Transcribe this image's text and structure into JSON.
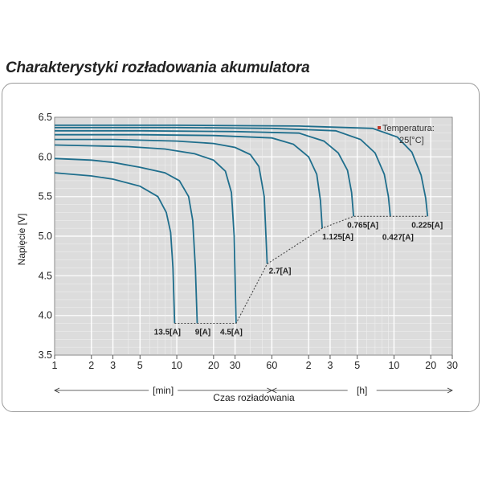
{
  "chart_data": {
    "type": "line",
    "title": "Charakterystyki rozładowania akumulatora",
    "ylabel": "Napięcie [V]",
    "xlabel": "Czas rozładowania",
    "x_scale": "log",
    "xlim_minutes": [
      1,
      1800
    ],
    "ylim": [
      3.5,
      6.5
    ],
    "y_ticks": [
      "3.5",
      "4.0",
      "4.5",
      "5.0",
      "5.5",
      "6.0",
      "6.5"
    ],
    "x_ticks": [
      {
        "label": "1",
        "minutes": 1
      },
      {
        "label": "2",
        "minutes": 2
      },
      {
        "label": "3",
        "minutes": 3
      },
      {
        "label": "5",
        "minutes": 5
      },
      {
        "label": "10",
        "minutes": 10
      },
      {
        "label": "20",
        "minutes": 20
      },
      {
        "label": "30",
        "minutes": 30
      },
      {
        "label": "60",
        "minutes": 60
      },
      {
        "label": "2",
        "minutes": 120
      },
      {
        "label": "3",
        "minutes": 180
      },
      {
        "label": "5",
        "minutes": 300
      },
      {
        "label": "10",
        "minutes": 600
      },
      {
        "label": "20",
        "minutes": 1200
      },
      {
        "label": "30",
        "minutes": 1800
      }
    ],
    "unit_min": "[min]",
    "unit_h": "[h]",
    "grid": true,
    "legend": {
      "text": [
        "Temperatura:",
        "25[°C]"
      ],
      "marker_color": "#c0392b",
      "placement": "top-right"
    },
    "line_color": "#1f6e8c",
    "series": [
      {
        "label": "13.5[A]",
        "x": [
          1,
          2,
          3,
          5,
          7,
          8.2,
          8.9,
          9.3,
          9.6
        ],
        "y": [
          5.8,
          5.76,
          5.72,
          5.63,
          5.5,
          5.3,
          5.05,
          4.6,
          3.9
        ]
      },
      {
        "label": "9[A]",
        "x": [
          1,
          2,
          3,
          5,
          8,
          10.5,
          12.5,
          13.5,
          14.2,
          14.7
        ],
        "y": [
          5.98,
          5.96,
          5.93,
          5.87,
          5.8,
          5.7,
          5.5,
          5.2,
          4.6,
          3.9
        ]
      },
      {
        "label": "4.5[A]",
        "x": [
          1,
          2,
          4,
          8,
          14,
          20,
          25,
          28,
          29.5,
          30.6
        ],
        "y": [
          6.15,
          6.14,
          6.13,
          6.1,
          6.04,
          5.96,
          5.82,
          5.55,
          5.0,
          3.9
        ]
      },
      {
        "label": "2.7[A]",
        "x": [
          1,
          3,
          10,
          20,
          30,
          40,
          47,
          52,
          55
        ],
        "y": [
          6.22,
          6.22,
          6.2,
          6.17,
          6.12,
          6.03,
          5.88,
          5.5,
          4.65
        ]
      },
      {
        "label": "1.125[A]",
        "x": [
          1,
          5,
          20,
          60,
          90,
          120,
          140,
          150,
          155
        ],
        "y": [
          6.28,
          6.28,
          6.27,
          6.24,
          6.16,
          6.0,
          5.78,
          5.45,
          5.1
        ]
      },
      {
        "label": "0.765[A]",
        "x": [
          1,
          5,
          30,
          100,
          160,
          210,
          250,
          270,
          280
        ],
        "y": [
          6.33,
          6.33,
          6.32,
          6.3,
          6.2,
          6.05,
          5.83,
          5.55,
          5.25
        ]
      },
      {
        "label": "0.427[A]",
        "x": [
          1,
          10,
          60,
          200,
          320,
          420,
          500,
          540,
          560
        ],
        "y": [
          6.37,
          6.37,
          6.36,
          6.33,
          6.22,
          6.05,
          5.78,
          5.5,
          5.25
        ]
      },
      {
        "label": "0.225[A]",
        "x": [
          1,
          10,
          100,
          400,
          640,
          840,
          1000,
          1090,
          1130
        ],
        "y": [
          6.4,
          6.4,
          6.39,
          6.36,
          6.25,
          6.06,
          5.77,
          5.48,
          5.25
        ]
      }
    ],
    "endpoint_path": {
      "x": [
        9.6,
        14.7,
        30.6,
        55,
        155,
        280,
        560,
        1130
      ],
      "y": [
        3.9,
        3.9,
        3.9,
        4.65,
        5.1,
        5.25,
        5.25,
        5.25
      ]
    }
  }
}
